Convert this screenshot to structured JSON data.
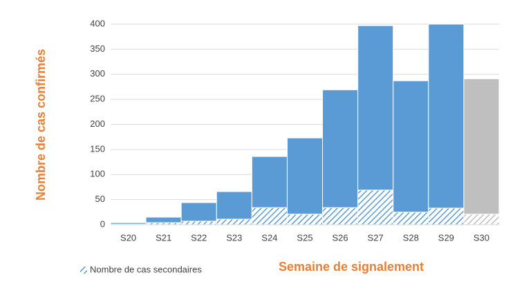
{
  "chart_data": {
    "type": "bar",
    "stacked": true,
    "x_label": "Semaine de signalement",
    "y_label": "Nombre de cas confirmés",
    "categories": [
      "S20",
      "S21",
      "S22",
      "S23",
      "S24",
      "S25",
      "S26",
      "S27",
      "S28",
      "S29",
      "S30"
    ],
    "series": [
      {
        "name": "Nombre de cas secondaires",
        "pattern": "hatch",
        "colors": [
          "#5B9BD5",
          "#5B9BD5",
          "#5B9BD5",
          "#5B9BD5",
          "#5B9BD5",
          "#5B9BD5",
          "#5B9BD5",
          "#5B9BD5",
          "#5B9BD5",
          "#5B9BD5",
          "#BFBFBF"
        ],
        "values": [
          1,
          4,
          7,
          11,
          34,
          21,
          34,
          69,
          25,
          33,
          21
        ]
      },
      {
        "colors": [
          "#5B9BD5",
          "#5B9BD5",
          "#5B9BD5",
          "#5B9BD5",
          "#5B9BD5",
          "#5B9BD5",
          "#5B9BD5",
          "#5B9BD5",
          "#5B9BD5",
          "#5B9BD5",
          "#BFBFBF"
        ],
        "values": [
          3,
          11,
          37,
          55,
          102,
          152,
          235,
          328,
          262,
          367,
          270
        ]
      }
    ],
    "ylim": [
      0,
      400
    ],
    "yticks": [
      0,
      50,
      100,
      150,
      200,
      250,
      300,
      350,
      400
    ],
    "grid": true
  }
}
